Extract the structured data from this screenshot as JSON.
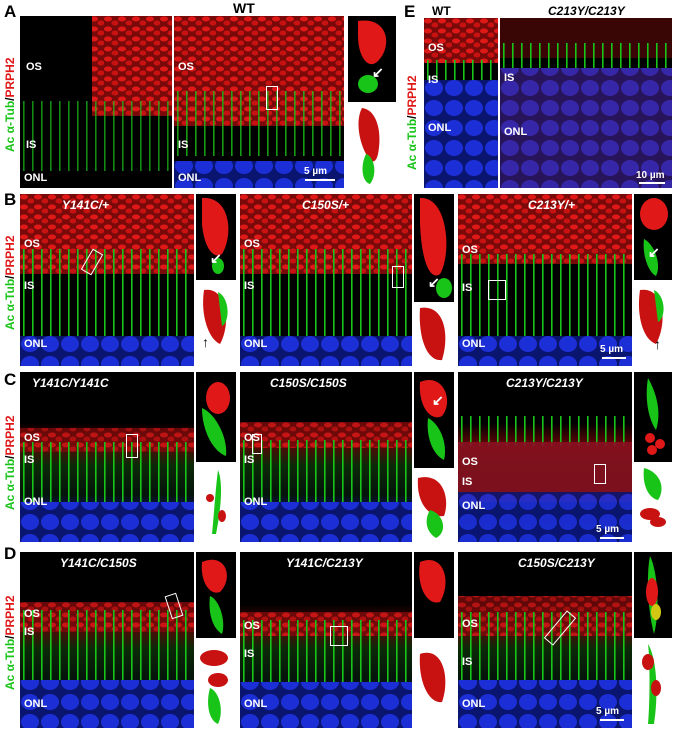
{
  "labels": {
    "A": "A",
    "B": "B",
    "C": "C",
    "D": "D",
    "E": "E"
  },
  "headers": {
    "wt": "WT",
    "wt2": "WT",
    "mut": "C213Y/C213Y"
  },
  "yaxis": {
    "green": "Ac α-Tub",
    "slash": "/",
    "red": "PRPH2"
  },
  "layers": {
    "os": "OS",
    "is": "IS",
    "onl": "ONL"
  },
  "scales": {
    "a": "5 µm",
    "b": "5 µm",
    "c": "5 µm",
    "d": "5 µm",
    "e": "10 µm"
  },
  "genotypes": {
    "b1": "Y141C/+",
    "b2": "C150S/+",
    "b3": "C213Y/+",
    "c1": "Y141C/Y141C",
    "c2": "C150S/C150S",
    "c3": "C213Y/C213Y",
    "d1": "Y141C/C150S",
    "d2": "Y141C/C213Y",
    "d3": "C150S/C213Y"
  },
  "colors": {
    "green": "#19c419",
    "red": "#e01818",
    "blue": "#1c2fd6"
  }
}
